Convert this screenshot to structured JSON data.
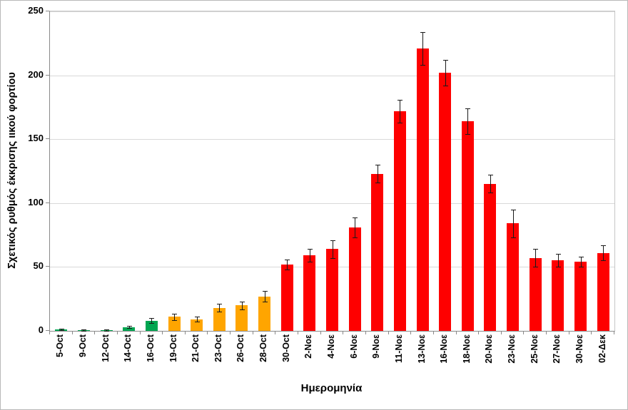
{
  "chart_data": {
    "type": "bar",
    "title": "",
    "xlabel": "Ημερομηνία",
    "ylabel": "Σχετικός ρυθμός έκκρισης ιικού φορτίου",
    "ylim": [
      0,
      250
    ],
    "ytick_step": 50,
    "grid": true,
    "legend": "none",
    "error_bars": true,
    "categories": [
      "5-Oct",
      "9-Oct",
      "12-Oct",
      "14-Oct",
      "16-Oct",
      "19-Oct",
      "21-Oct",
      "23-Oct",
      "26-Oct",
      "28-Oct",
      "30-Oct",
      "2-Νοε",
      "4-Νοε",
      "6-Νοε",
      "9-Νοε",
      "11-Νοε",
      "13-Νοε",
      "16-Νοε",
      "18-Νοε",
      "20-Νοε",
      "23-Νοε",
      "25-Νοε",
      "27-Νοε",
      "30-Νοε",
      "02-Δεκ"
    ],
    "values": [
      1,
      0.5,
      0.5,
      3,
      8,
      11,
      9,
      18,
      20,
      27,
      52,
      59,
      64,
      81,
      123,
      172,
      221,
      202,
      164,
      115,
      84,
      57,
      55,
      54,
      61
    ],
    "errors": [
      0.7,
      0.4,
      0.4,
      1,
      2,
      2.5,
      2,
      3,
      3,
      4,
      4,
      5,
      7,
      8,
      7,
      9,
      13,
      10,
      10,
      7,
      11,
      7,
      5,
      4,
      6
    ],
    "bar_groups": [
      "green",
      "green",
      "green",
      "green",
      "green",
      "orange",
      "orange",
      "orange",
      "orange",
      "orange",
      "red",
      "red",
      "red",
      "red",
      "red",
      "red",
      "red",
      "red",
      "red",
      "red",
      "red",
      "red",
      "red",
      "red",
      "red"
    ],
    "palette": {
      "green": "#00a651",
      "orange": "#ffa500",
      "red": "#fe0000"
    },
    "error_bar_color": "#1a1a1a"
  }
}
